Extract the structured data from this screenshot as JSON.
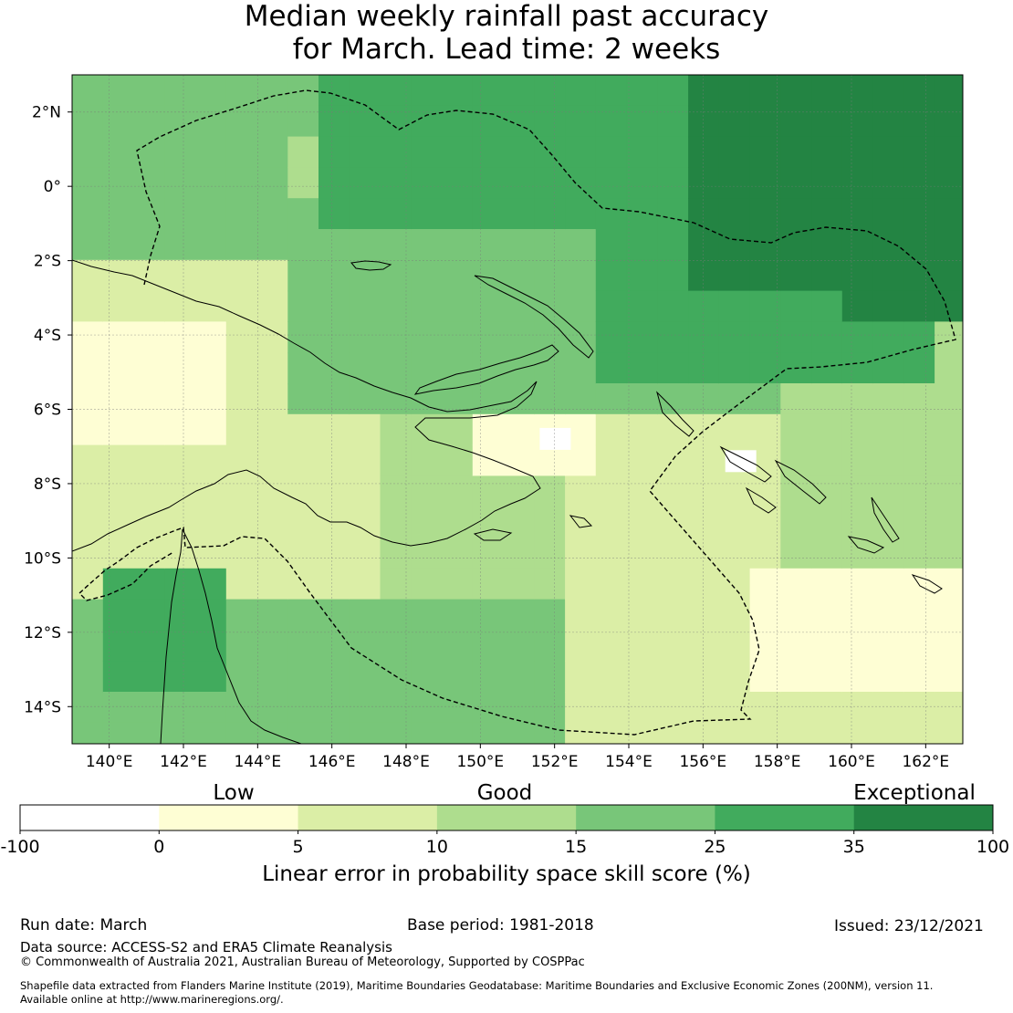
{
  "title": {
    "line1": "Median weekly rainfall past accuracy",
    "line2": "for March. Lead time: 2 weeks"
  },
  "map": {
    "lon_range": [
      139,
      163
    ],
    "lat_range": [
      -15,
      3
    ],
    "lon_ticks": [
      "140°E",
      "142°E",
      "144°E",
      "146°E",
      "148°E",
      "150°E",
      "152°E",
      "154°E",
      "156°E",
      "158°E",
      "160°E",
      "162°E"
    ],
    "lat_ticks": [
      "2°N",
      "0°",
      "2°S",
      "4°S",
      "6°S",
      "8°S",
      "10°S",
      "12°S",
      "14°S"
    ]
  },
  "colors": {
    "c0": "#ffffff",
    "c1": "#fefed4",
    "c2": "#dbeea6",
    "c3": "#aedd8e",
    "c4": "#78c679",
    "c5": "#41ab5d",
    "c6": "#238443"
  },
  "legend": {
    "categories": [
      "Low",
      "Good",
      "Exceptional"
    ],
    "ticks": [
      "-100",
      "0",
      "5",
      "10",
      "15",
      "25",
      "35",
      "100"
    ],
    "label": "Linear error in probability space skill score (%)"
  },
  "footer": {
    "run_date": "Run date: March",
    "base_period": "Base period: 1981-2018",
    "issued": "Issued: 23/12/2021",
    "data_source": "Data source: ACCESS-S2 and ERA5 Climate Reanalysis",
    "copyright": "© Commonwealth of Australia 2021, Australian Bureau of Meteorology, Supported by COSPPac",
    "shapefile1": "Shapefile data extracted from Flanders Marine Institute (2019), Maritime Boundaries Geodatabase: Maritime Boundaries and Exclusive Economic Zones (200NM), version 11.",
    "shapefile2": "Available online at http://www.marineregions.org/."
  }
}
